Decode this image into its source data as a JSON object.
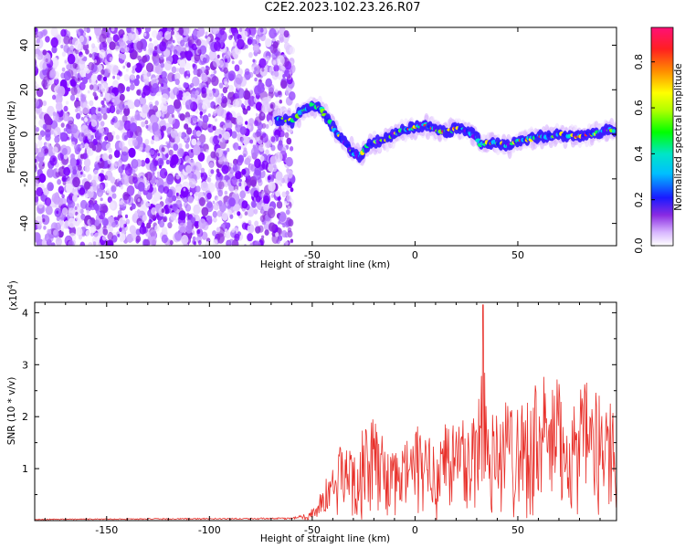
{
  "title": "C2E2.2023.102.23.26.R07",
  "chart_data": [
    {
      "type": "heatmap",
      "xlabel": "Height of straight line (km)",
      "ylabel": "Frequency (Hz)",
      "xlim": [
        -185,
        98
      ],
      "ylim": [
        -50,
        48
      ],
      "xticks": [
        -150,
        -100,
        -50,
        0,
        50
      ],
      "yticks": [
        -40,
        -20,
        0,
        20,
        40
      ],
      "noise_region_x": [
        -185,
        -62
      ],
      "ridge": {
        "x": [
          -66,
          -60,
          -55,
          -50,
          -45,
          -40,
          -35,
          -30,
          -27,
          -22,
          -15,
          -10,
          -5,
          0,
          5,
          10,
          15,
          20,
          25,
          30,
          32,
          35,
          40,
          45,
          50,
          55,
          60,
          65,
          70,
          75,
          80,
          85,
          90,
          95
        ],
        "frequency": [
          7,
          6,
          10,
          13,
          11,
          3,
          -3,
          -8,
          -10,
          -4,
          -3,
          0,
          2,
          3,
          4,
          2,
          1,
          3,
          2,
          -1,
          -5,
          -4,
          -4,
          -5,
          -3,
          -2,
          -1,
          -1,
          0,
          -1,
          -1,
          0,
          1,
          2
        ]
      },
      "colorbar": {
        "label": "Normalized spectral amplitude",
        "range": [
          0,
          0.95
        ],
        "ticks": [
          "0.0",
          "0.2",
          "0.4",
          "0.6",
          "0.8"
        ]
      }
    },
    {
      "type": "line",
      "xlabel": "Height of straight line (km)",
      "ylabel": "SNR (10 * v/v)",
      "y_multiplier": "(x10",
      "y_multiplier_exp": "4",
      "y_multiplier_close": ")",
      "xlim": [
        -185,
        98
      ],
      "ylim": [
        0,
        4.2
      ],
      "xticks": [
        -150,
        -100,
        -50,
        0,
        50
      ],
      "yticks": [
        1,
        2,
        3,
        4
      ],
      "color": "#e8302a",
      "envelope": {
        "x": [
          -185,
          -60,
          -52,
          -48,
          -45,
          -40,
          -35,
          -30,
          -25,
          -20,
          -15,
          -10,
          -5,
          0,
          5,
          10,
          15,
          20,
          25,
          30,
          33,
          35,
          40,
          45,
          50,
          55,
          60,
          65,
          70,
          75,
          80,
          85,
          90,
          95,
          98
        ],
        "snr": [
          0.03,
          0.05,
          0.15,
          0.35,
          0.6,
          1.1,
          1.5,
          1.4,
          1.7,
          1.9,
          1.6,
          1.2,
          1.5,
          1.8,
          1.6,
          1.5,
          2.0,
          1.9,
          2.0,
          2.1,
          4.1,
          2.4,
          2.0,
          2.3,
          2.4,
          2.3,
          2.7,
          2.6,
          2.6,
          2.3,
          2.4,
          2.6,
          2.3,
          2.5,
          2.3
        ]
      }
    }
  ]
}
